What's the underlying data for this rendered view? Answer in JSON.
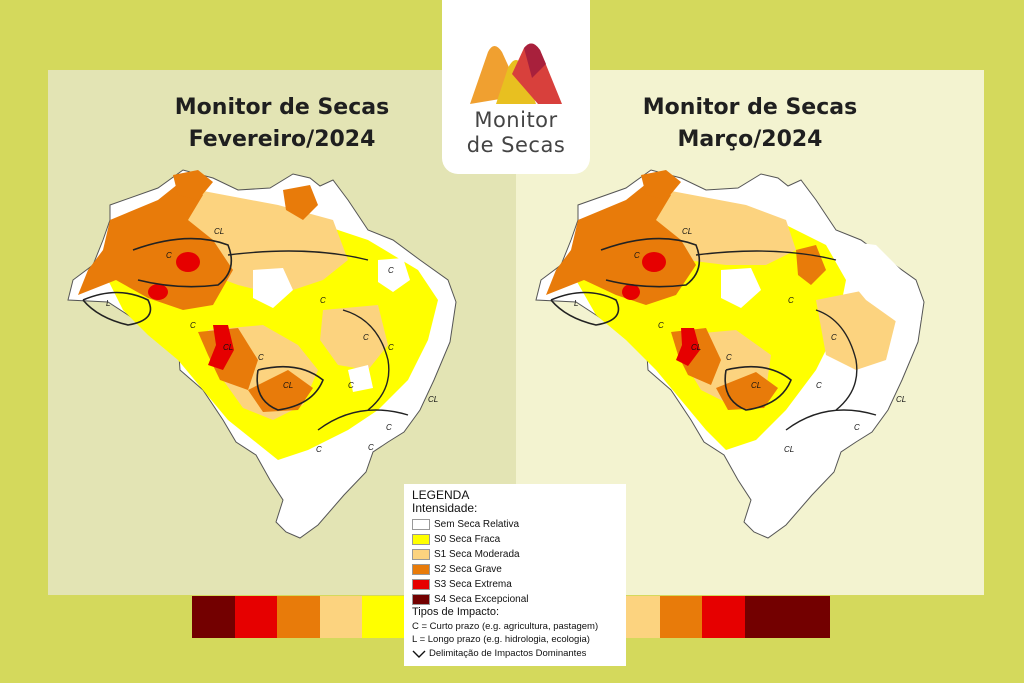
{
  "logo": {
    "line1": "Monitor",
    "line2": "de Secas",
    "colors": [
      "#f0a030",
      "#e8c020",
      "#d8403c",
      "#a8203c"
    ]
  },
  "maps": [
    {
      "title_line1": "Monitor de Secas",
      "title_line2": "Fevereiro/2024",
      "labels": [
        "C",
        "C",
        "CL",
        "L",
        "C",
        "CL",
        "C",
        "C",
        "CL",
        "C",
        "C",
        "CL",
        "C",
        "C",
        "C",
        "C"
      ]
    },
    {
      "title_line1": "Monitor de Secas",
      "title_line2": "Março/2024",
      "labels": [
        "C",
        "CL",
        "L",
        "C",
        "CL",
        "C",
        "C",
        "CL",
        "C",
        "C",
        "CL",
        "C",
        "CL"
      ]
    }
  ],
  "legend": {
    "title": "LEGENDA",
    "intensity_title": "Intensidade:",
    "items": [
      {
        "label": "Sem Seca Relativa",
        "color": "#ffffff"
      },
      {
        "label": "S0 Seca Fraca",
        "color": "#ffff00"
      },
      {
        "label": "S1 Seca Moderada",
        "color": "#fcd37f"
      },
      {
        "label": "S2 Seca Grave",
        "color": "#e87b0a"
      },
      {
        "label": "S3 Seca Extrema",
        "color": "#e60000"
      },
      {
        "label": "S4 Seca Excepcional",
        "color": "#730000"
      }
    ],
    "impact_title": "Tipos de Impacto:",
    "impact_short": "C = Curto prazo (e.g. agricultura, pastagem)",
    "impact_long": "L = Longo prazo (e.g. hidrologia, ecologia)",
    "impact_line": "Delimitação de Impactos Dominantes"
  },
  "scale_bar_colors": [
    "#730000",
    "#e60000",
    "#e87b0a",
    "#fcd37f",
    "#ffff00",
    "#ffffff",
    "#ffffff",
    "#ffffff",
    "#ffff00",
    "#ffff00",
    "#fcd37f",
    "#e87b0a",
    "#e60000",
    "#730000",
    "#730000"
  ]
}
